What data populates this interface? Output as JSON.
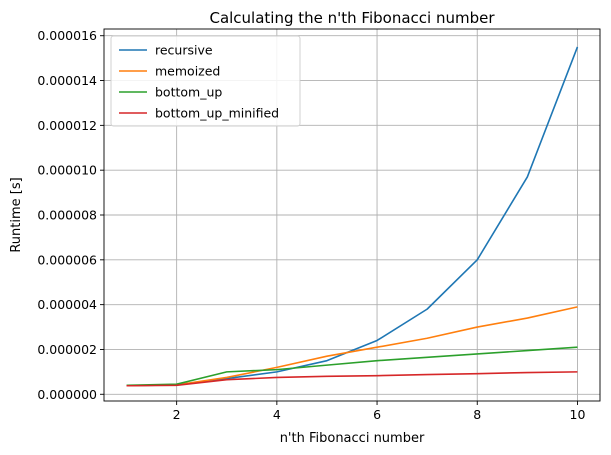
{
  "chart_data": {
    "type": "line",
    "title": "Calculating the n'th Fibonacci number",
    "xlabel": "n'th Fibonacci number",
    "ylabel": "Runtime [s]",
    "xlim": [
      0.55,
      10.45
    ],
    "ylim": [
      -3e-07,
      1.63e-05
    ],
    "xticks": [
      2,
      4,
      6,
      8,
      10
    ],
    "xtick_labels": [
      "2",
      "4",
      "6",
      "8",
      "10"
    ],
    "yticks": [
      0,
      2e-06,
      4e-06,
      6e-06,
      8e-06,
      1e-05,
      1.2e-05,
      1.4e-05,
      1.6e-05
    ],
    "ytick_labels": [
      "0.000000",
      "0.000002",
      "0.000004",
      "0.000006",
      "0.000008",
      "0.000010",
      "0.000012",
      "0.000014",
      "0.000016"
    ],
    "grid": true,
    "legend_position": "upper-left",
    "x": [
      1,
      2,
      3,
      4,
      5,
      6,
      7,
      8,
      9,
      10
    ],
    "series": [
      {
        "name": "recursive",
        "color": "#1f77b4",
        "values": [
          3.8e-07,
          4.2e-07,
          7e-07,
          1e-06,
          1.5e-06,
          2.4e-06,
          3.8e-06,
          6e-06,
          9.7e-06,
          1.55e-05
        ]
      },
      {
        "name": "memoized",
        "color": "#ff7f0e",
        "values": [
          3.8e-07,
          4.2e-07,
          7.5e-07,
          1.2e-06,
          1.7e-06,
          2.1e-06,
          2.5e-06,
          3e-06,
          3.4e-06,
          3.9e-06
        ]
      },
      {
        "name": "bottom_up",
        "color": "#2ca02c",
        "values": [
          4e-07,
          4.5e-07,
          1e-06,
          1.1e-06,
          1.3e-06,
          1.5e-06,
          1.65e-06,
          1.8e-06,
          1.95e-06,
          2.1e-06
        ]
      },
      {
        "name": "bottom_up_minified",
        "color": "#d62728",
        "values": [
          3.8e-07,
          4e-07,
          6.5e-07,
          7.5e-07,
          8e-07,
          8.3e-07,
          8.8e-07,
          9.2e-07,
          9.7e-07,
          1e-06
        ]
      }
    ]
  }
}
